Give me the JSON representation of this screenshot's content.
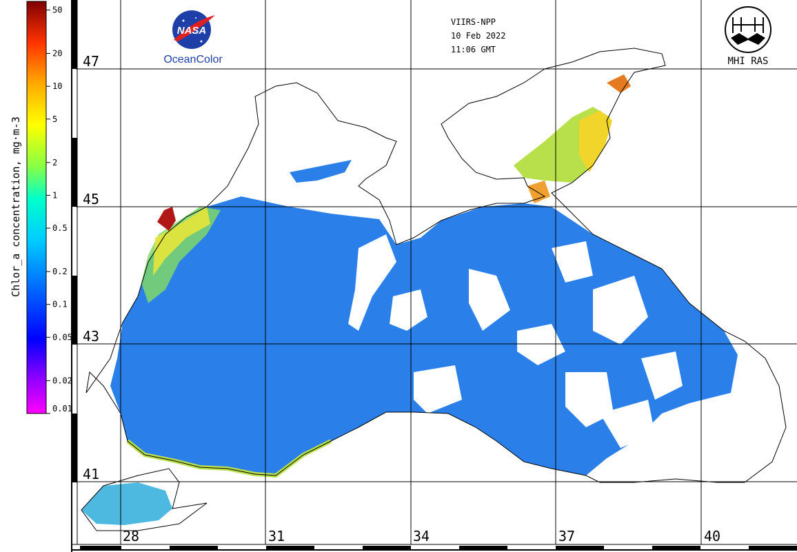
{
  "header": {
    "satellite": "VIIRS-NPP",
    "date": "10 Feb 2022",
    "time": "11:06 GMT"
  },
  "logos": {
    "nasa": {
      "mark": "NASA",
      "caption": "OceanColor"
    },
    "mhi": {
      "caption": "MHI RAS"
    }
  },
  "colorbar": {
    "title": "Chlor_a concentration, mg·m-3",
    "ticks": [
      "50",
      "20",
      "10",
      "5",
      "2",
      "1",
      "0.5",
      "0.2",
      "0.1",
      "0.05",
      "0.02",
      "0.01"
    ],
    "colors": [
      "#ff00ff",
      "#8800ff",
      "#0000ff",
      "#0066ff",
      "#00ccff",
      "#00ffcc",
      "#88ff44",
      "#ffff00",
      "#ffaa00",
      "#ff5500",
      "#cc0000",
      "#800000"
    ],
    "scale": "log"
  },
  "grid": {
    "latitudes": [
      "47",
      "45",
      "43",
      "41"
    ],
    "longitudes": [
      "28",
      "31",
      "34",
      "37",
      "40"
    ]
  }
}
